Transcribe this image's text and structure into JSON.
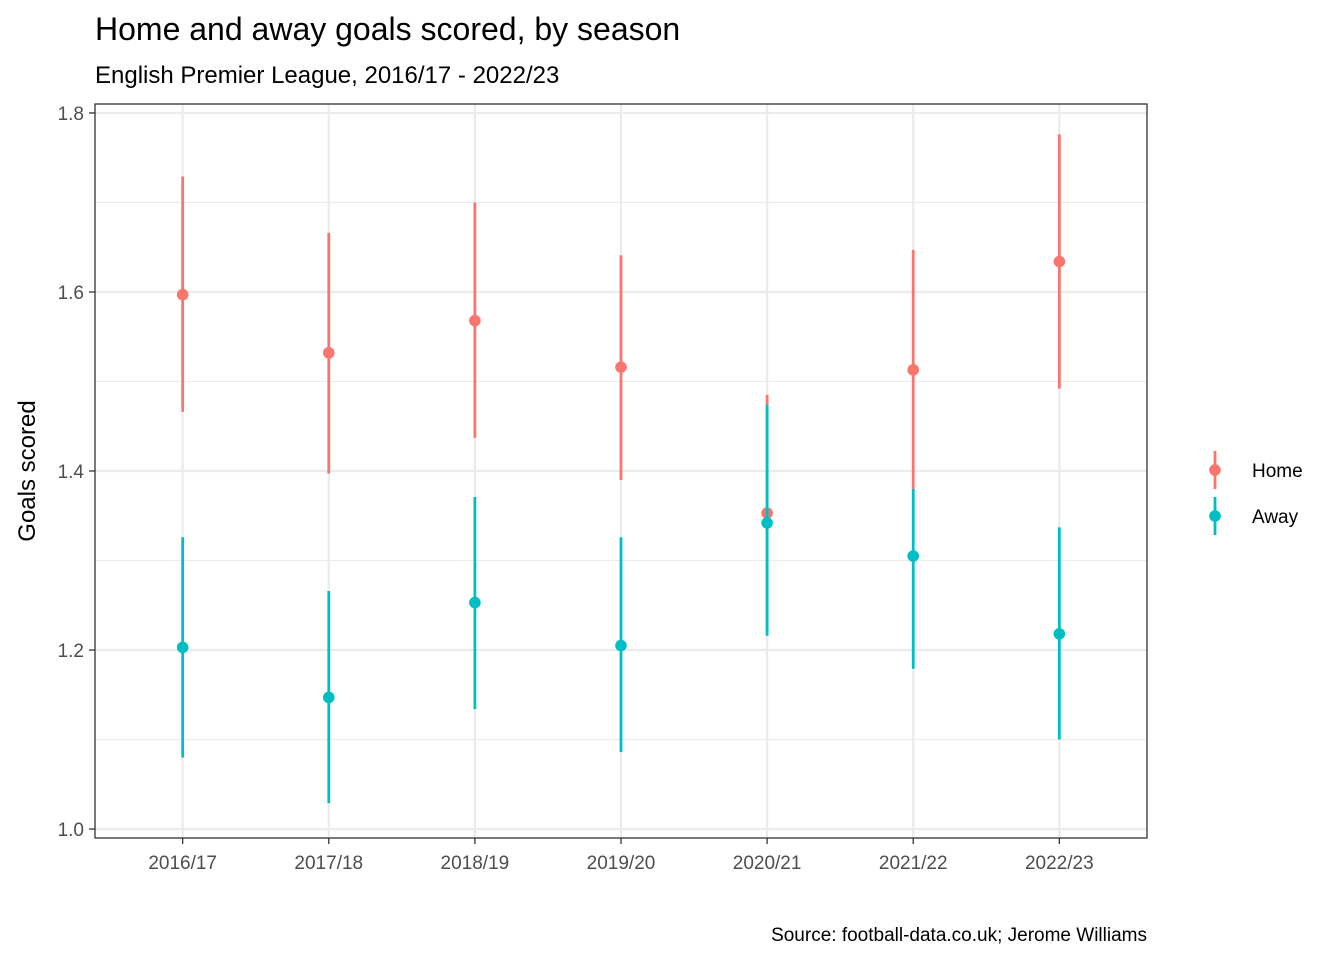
{
  "chart_data": {
    "type": "scatter",
    "title": "Home and away goals scored, by season",
    "subtitle": "English Premier League, 2016/17 - 2022/23",
    "caption": "Source: football-data.co.uk; Jerome Williams",
    "xlabel": "",
    "ylabel": "Goals scored",
    "categories": [
      "2016/17",
      "2017/18",
      "2018/19",
      "2019/20",
      "2020/21",
      "2021/22",
      "2022/23"
    ],
    "ylim": [
      0.99,
      1.81
    ],
    "yticks": [
      1.0,
      1.2,
      1.4,
      1.6,
      1.8
    ],
    "ytick_labels": [
      "1.0",
      "1.2",
      "1.4",
      "1.6",
      "1.8"
    ],
    "grid": true,
    "legend_position": "right",
    "series": [
      {
        "name": "Home",
        "color": "#F8766D",
        "values": [
          1.597,
          1.532,
          1.568,
          1.516,
          1.353,
          1.513,
          1.634
        ],
        "lower": [
          1.466,
          1.397,
          1.437,
          1.39,
          1.218,
          1.38,
          1.492
        ],
        "upper": [
          1.729,
          1.666,
          1.7,
          1.641,
          1.485,
          1.647,
          1.776
        ]
      },
      {
        "name": "Away",
        "color": "#00BFC4",
        "values": [
          1.203,
          1.147,
          1.253,
          1.205,
          1.342,
          1.305,
          1.218
        ],
        "lower": [
          1.08,
          1.029,
          1.134,
          1.086,
          1.216,
          1.179,
          1.1
        ],
        "upper": [
          1.326,
          1.266,
          1.371,
          1.326,
          1.474,
          1.38,
          1.337
        ]
      }
    ]
  }
}
